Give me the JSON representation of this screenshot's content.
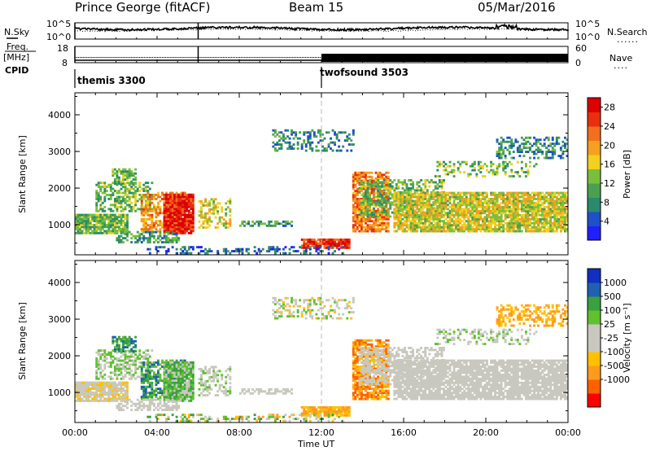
{
  "header": {
    "station": "Prince George (fitACF)",
    "beam": "Beam 15",
    "date": "05/Mar/2016"
  },
  "side_labels": {
    "nsky": "N.Sky",
    "freq": "Freq.",
    "mhz": "[MHz]",
    "cpid": "CPID",
    "nsearch": "N.Search",
    "nave": "Nave",
    "dots": "......",
    "dots_short": "...."
  },
  "top_axes": {
    "noise_ticks_left": [
      "10^5",
      "10^0"
    ],
    "noise_ticks_right": [
      "10^5",
      "10^0"
    ],
    "freq_ticks_left": [
      "18",
      "8"
    ],
    "nave_ticks_right": [
      "60",
      "0"
    ]
  },
  "cpid": [
    {
      "name": "themis 3300",
      "start_hour": 0
    },
    {
      "name": "twofsound 3503",
      "start_hour": 12
    }
  ],
  "colors": {
    "power": [
      "#2020ff",
      "#1e50c8",
      "#2a8a6e",
      "#4aa050",
      "#78c03c",
      "#f0d020",
      "#f5a020",
      "#f07020",
      "#e83010",
      "#dd0000"
    ],
    "velocity": [
      "#ff0000",
      "#ff6000",
      "#ff9a20",
      "#ffc000",
      "#c8c8be",
      "#c8c8be",
      "#60c030",
      "#3aa040",
      "#2060b0",
      "#1030c0"
    ]
  },
  "chart_data": [
    {
      "type": "heatmap",
      "ylabel": "Slant Range [km]",
      "xlim": [
        0,
        24
      ],
      "ylim": [
        180,
        4600
      ],
      "yticks": [
        1000,
        2000,
        3000,
        4000
      ],
      "xticks": [
        "00:00",
        "04:00",
        "08:00",
        "12:00",
        "16:00",
        "20:00",
        "00:00"
      ],
      "colorbar": {
        "label": "Power [dB]",
        "ticks": [
          "4",
          "8",
          "12",
          "16",
          "20",
          "24",
          "28"
        ],
        "range": [
          0,
          30
        ]
      }
    },
    {
      "type": "heatmap",
      "ylabel": "Slant Range [km]",
      "xlabel": "Time UT",
      "xlim": [
        0,
        24
      ],
      "ylim": [
        180,
        4600
      ],
      "yticks": [
        1000,
        2000,
        3000,
        4000
      ],
      "xticks": [
        "00:00",
        "04:00",
        "08:00",
        "12:00",
        "16:00",
        "20:00",
        "00:00"
      ],
      "colorbar": {
        "label": "Velocity [m s⁻¹]",
        "ticks": [
          "1000",
          "500",
          "100",
          "25",
          "-25",
          "-100",
          "-500",
          "-1000"
        ]
      }
    }
  ]
}
